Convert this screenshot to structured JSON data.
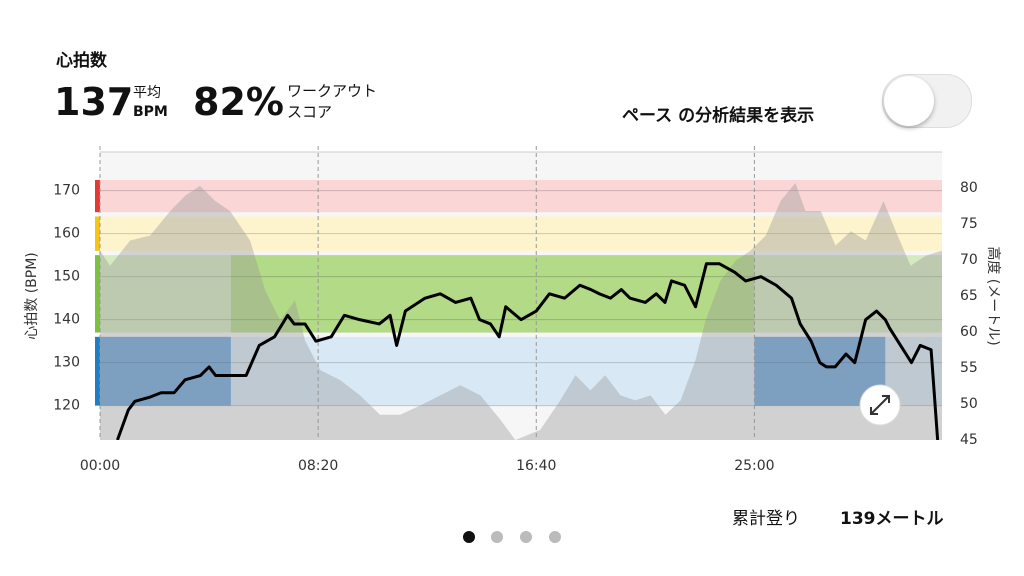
{
  "header": {
    "title": "心拍数",
    "avg_value": "137",
    "avg_label_top": "平均",
    "avg_label_bottom": "BPM",
    "score_value": "82%",
    "score_label_top": "ワークアウト",
    "score_label_bottom": "スコア",
    "toggle_label": "ペース の分析結果を表示"
  },
  "chart_data": {
    "type": "line",
    "ylabel": "心拍数 (BPM)",
    "y2label": "高度 (メートル)",
    "xlim": [
      0,
      1930
    ],
    "xticks": [
      {
        "value": 0,
        "label": "00:00"
      },
      {
        "value": 500,
        "label": "08:20"
      },
      {
        "value": 1000,
        "label": "16:40"
      },
      {
        "value": 1500,
        "label": "25:00"
      }
    ],
    "ylim": [
      112,
      179
    ],
    "yticks": [
      120,
      130,
      140,
      150,
      160,
      170
    ],
    "y2lim": [
      45,
      85
    ],
    "y2ticks": [
      45,
      50,
      55,
      60,
      65,
      70,
      75,
      80
    ],
    "zones": [
      {
        "range": [
          165,
          172.5
        ],
        "color": "#fad6d6",
        "marker": "#e53935"
      },
      {
        "range": [
          156,
          164
        ],
        "color": "#fdf3cc",
        "marker": "#f5c518"
      },
      {
        "range": [
          137,
          155
        ],
        "color": "#d6eac0",
        "marker": "#7cc142"
      },
      {
        "range": [
          120,
          136
        ],
        "color": "#d9e8f5",
        "marker": "#1f7fc4"
      }
    ],
    "highlights": [
      {
        "zone": 3,
        "x": [
          0,
          300
        ],
        "color": "#6fa6dc"
      },
      {
        "zone": 2,
        "x": [
          300,
          1500
        ],
        "color": "#b2da87"
      },
      {
        "zone": 3,
        "x": [
          1500,
          1800
        ],
        "color": "#6fa6dc"
      }
    ],
    "series": [
      {
        "axis": "y2",
        "color": "rgba(150,150,150,0.38)",
        "x": [
          0,
          23,
          69,
          115,
          161,
          195,
          229,
          264,
          298,
          344,
          379,
          413,
          447,
          470,
          505,
          551,
          596,
          642,
          688,
          734,
          780,
          826,
          872,
          918,
          952,
          1009,
          1055,
          1090,
          1124,
          1158,
          1193,
          1227,
          1262,
          1296,
          1331,
          1365,
          1388,
          1422,
          1457,
          1491,
          1526,
          1560,
          1594,
          1617,
          1652,
          1686,
          1721,
          1755,
          1796,
          1824,
          1858,
          1893,
          1930
        ],
        "values": [
          71.3,
          69.2,
          72.7,
          73.4,
          76.8,
          78.9,
          80.3,
          78.2,
          76.8,
          72.7,
          65.7,
          61.6,
          64.4,
          58.8,
          54.7,
          53.3,
          51.2,
          48.5,
          48.5,
          49.8,
          51.2,
          52.6,
          51.2,
          47.8,
          45,
          46.4,
          50.5,
          54,
          51.9,
          54,
          51.2,
          50.5,
          51.2,
          48.5,
          50.5,
          56.1,
          61.6,
          67.1,
          69.9,
          71.3,
          73.4,
          78.2,
          80.7,
          76.8,
          76.8,
          72,
          74,
          72.7,
          78.2,
          74,
          69.2,
          70.6,
          71.3
        ]
      },
      {
        "color": "#000000",
        "x": [
          40,
          65,
          80,
          115,
          140,
          170,
          195,
          230,
          250,
          265,
          285,
          335,
          365,
          400,
          430,
          445,
          470,
          495,
          530,
          560,
          595,
          640,
          665,
          680,
          700,
          745,
          780,
          815,
          850,
          870,
          895,
          915,
          930,
          965,
          1000,
          1030,
          1065,
          1100,
          1125,
          1145,
          1170,
          1195,
          1215,
          1250,
          1275,
          1295,
          1310,
          1340,
          1365,
          1390,
          1420,
          1455,
          1480,
          1515,
          1550,
          1585,
          1605,
          1630,
          1650,
          1665,
          1685,
          1710,
          1730,
          1755,
          1780,
          1800,
          1810,
          1835,
          1860,
          1880,
          1905,
          1920
        ],
        "values": [
          112,
          119,
          121,
          122,
          123,
          123,
          126,
          127,
          129,
          127,
          127,
          127,
          134,
          136,
          141,
          139,
          139,
          135,
          136,
          141,
          140,
          139,
          141,
          134,
          142,
          145,
          146,
          144,
          145,
          140,
          139,
          136,
          143,
          140,
          142,
          146,
          145,
          148,
          147,
          146,
          145,
          147,
          145,
          144,
          146,
          144,
          149,
          148,
          143,
          153,
          153,
          151,
          149,
          150,
          148,
          145,
          139,
          135,
          130,
          129,
          129,
          132,
          130,
          140,
          142,
          140,
          138,
          134,
          130,
          134,
          133,
          112
        ]
      }
    ]
  },
  "footer": {
    "label": "累計登り",
    "value": "139メートル"
  }
}
